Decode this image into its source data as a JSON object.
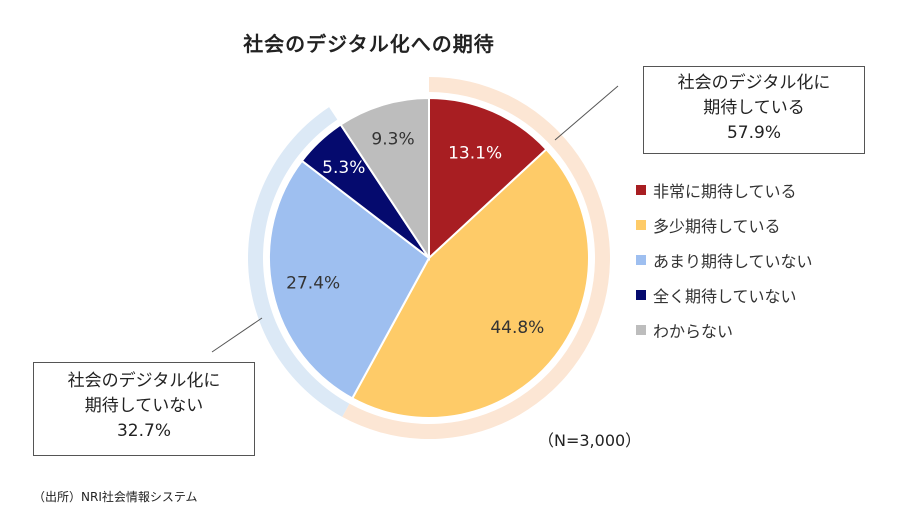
{
  "chart_data": {
    "type": "pie",
    "title": "社会のデジタル化への期待",
    "categories": [
      "非常に期待している",
      "多少期待している",
      "あまり期待していない",
      "全く期待していない",
      "わからない"
    ],
    "values": [
      13.1,
      44.8,
      27.4,
      5.3,
      9.3
    ],
    "value_labels": [
      "13.1%",
      "44.8%",
      "27.4%",
      "5.3%",
      "9.3%"
    ],
    "colors": [
      "#A81E22",
      "#FECB68",
      "#9EBFF0",
      "#050A6E",
      "#BDBDBD"
    ],
    "groups": [
      {
        "name": "社会のデジタル化に期待している",
        "value": 57.9,
        "members": [
          "非常に期待している",
          "多少期待している"
        ],
        "ring_color": "#FCE6D4"
      },
      {
        "name": "社会のデジタル化に期待していない",
        "value": 32.7,
        "members": [
          "あまり期待していない",
          "全く期待していない"
        ],
        "ring_color": "#DCE9F6"
      }
    ],
    "legend_position": "right",
    "sample_note": "（N=3,000）"
  },
  "callouts": {
    "positive": {
      "line1": "社会のデジタル化に",
      "line2": "期待している",
      "line3": "57.9%"
    },
    "negative": {
      "line1": "社会のデジタル化に",
      "line2": "期待していない",
      "line3": "32.7%"
    }
  },
  "source": "（出所）NRI社会情報システム"
}
